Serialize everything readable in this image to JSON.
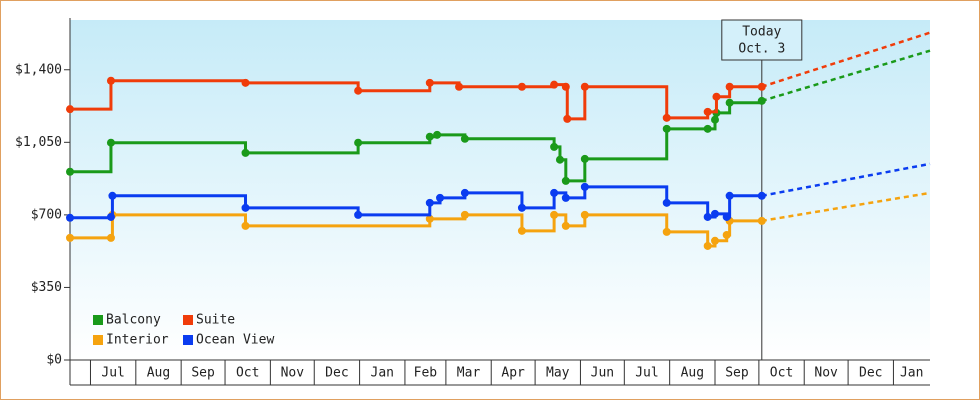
{
  "chart_data": {
    "type": "step-line",
    "annotation": {
      "x": 473,
      "lines": [
        "Today",
        "Oct. 3"
      ]
    },
    "xlim": [
      0,
      588
    ],
    "xticks": [
      {
        "value": 14,
        "label": "Jul"
      },
      {
        "value": 45,
        "label": "Aug"
      },
      {
        "value": 76,
        "label": "Sep"
      },
      {
        "value": 106,
        "label": "Oct"
      },
      {
        "value": 137,
        "label": "Nov"
      },
      {
        "value": 167,
        "label": "Dec"
      },
      {
        "value": 198,
        "label": "Jan"
      },
      {
        "value": 229,
        "label": "Feb"
      },
      {
        "value": 257,
        "label": "Mar"
      },
      {
        "value": 288,
        "label": "Apr"
      },
      {
        "value": 318,
        "label": "May"
      },
      {
        "value": 349,
        "label": "Jun"
      },
      {
        "value": 379,
        "label": "Jul"
      },
      {
        "value": 410,
        "label": "Aug"
      },
      {
        "value": 441,
        "label": "Sep"
      },
      {
        "value": 471,
        "label": "Oct"
      },
      {
        "value": 502,
        "label": "Nov"
      },
      {
        "value": 532,
        "label": "Dec"
      },
      {
        "value": 563,
        "label": "Jan"
      }
    ],
    "ylim": [
      0,
      1640
    ],
    "yticks": [
      {
        "value": 0,
        "label": "$0"
      },
      {
        "value": 350,
        "label": "$350"
      },
      {
        "value": 700,
        "label": "$700"
      },
      {
        "value": 1050,
        "label": "$1,050"
      },
      {
        "value": 1400,
        "label": "$1,400"
      }
    ],
    "legend": "bottom-left",
    "series": [
      {
        "name": "Balcony",
        "color": "#1a9a1a",
        "x": [
          0,
          28,
          120,
          197,
          246,
          251,
          270,
          331,
          335,
          339,
          352,
          408,
          436,
          441,
          442,
          451,
          473
        ],
        "values": [
          908,
          1048,
          999,
          1048,
          1077,
          1086,
          1067,
          1028,
          966,
          864,
          970,
          1115,
          1115,
          1159,
          1192,
          1241,
          1250
        ],
        "forecast": {
          "x": [
            588
          ],
          "values": [
            1492
          ]
        }
      },
      {
        "name": "Suite",
        "color": "#f03c0a",
        "x": [
          0,
          28,
          120,
          197,
          246,
          266,
          309,
          331,
          339,
          340,
          352,
          408,
          436,
          442,
          451,
          473
        ],
        "values": [
          1210,
          1347,
          1337,
          1299,
          1337,
          1318,
          1318,
          1328,
          1318,
          1163,
          1318,
          1168,
          1197,
          1270,
          1318,
          1318
        ],
        "forecast": {
          "x": [
            588
          ],
          "values": [
            1579
          ]
        }
      },
      {
        "name": "Interior",
        "color": "#f5a30f",
        "x": [
          0,
          28,
          29,
          120,
          246,
          270,
          309,
          331,
          339,
          352,
          408,
          436,
          441,
          449,
          451,
          473
        ],
        "values": [
          589,
          589,
          700,
          647,
          681,
          700,
          623,
          700,
          647,
          700,
          618,
          550,
          575,
          603,
          671,
          671
        ],
        "forecast": {
          "x": [
            588
          ],
          "values": [
            806
          ]
        }
      },
      {
        "name": "Ocean View",
        "color": "#0a3cf0",
        "x": [
          0,
          28,
          29,
          120,
          197,
          246,
          253,
          270,
          309,
          331,
          339,
          352,
          408,
          436,
          441,
          449,
          451,
          473
        ],
        "values": [
          686,
          690,
          792,
          734,
          700,
          758,
          782,
          806,
          734,
          806,
          782,
          835,
          758,
          690,
          705,
          690,
          792,
          792
        ],
        "forecast": {
          "x": [
            588
          ],
          "values": [
            946
          ]
        }
      }
    ]
  }
}
